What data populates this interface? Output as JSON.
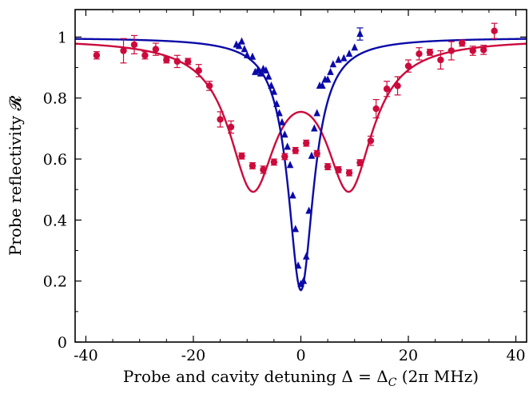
{
  "chart_data": {
    "type": "scatter",
    "title": "",
    "xlabel": "Probe and cavity detuning Δ = Δ_C (2π MHz)",
    "xlabel_parts": {
      "main": "Probe and cavity detuning Δ = Δ",
      "sub": "C",
      "tail": " (2π MHz)"
    },
    "ylabel": "Probe reflectivity 𝓡",
    "xlim": [
      -42,
      42
    ],
    "ylim": [
      0,
      1.09
    ],
    "xticks": [
      -40,
      -20,
      0,
      20,
      40
    ],
    "xtick_labels": [
      "-40",
      "-20",
      "0",
      "20",
      "40"
    ],
    "yticks": [
      0,
      0.2,
      0.4,
      0.6,
      0.8,
      1
    ],
    "ytick_labels": [
      "0",
      "0.2",
      "0.4",
      "0.6",
      "0.8",
      "1"
    ],
    "grid": false,
    "legend": "none",
    "colors": {
      "red": "#cc0a3c",
      "blue": "#0a0aa8"
    },
    "series": [
      {
        "marker": "circle",
        "color": "#cc0a3c",
        "x": [
          -38,
          -33,
          -31,
          -29,
          -27,
          -25,
          -23,
          -21,
          -19,
          -17,
          -15,
          -13,
          -11,
          -9,
          -7,
          -5,
          -3,
          -1,
          1,
          3,
          5,
          7,
          9,
          11,
          13,
          14,
          16,
          18,
          20,
          22,
          24,
          26,
          28,
          30,
          32,
          34,
          36
        ],
        "y": [
          0.94,
          0.955,
          0.975,
          0.94,
          0.96,
          0.925,
          0.92,
          0.92,
          0.89,
          0.84,
          0.73,
          0.705,
          0.61,
          0.578,
          0.565,
          0.59,
          0.608,
          0.628,
          0.652,
          0.618,
          0.575,
          0.565,
          0.555,
          0.588,
          0.66,
          0.765,
          0.83,
          0.84,
          0.905,
          0.945,
          0.95,
          0.925,
          0.955,
          0.98,
          0.955,
          0.958,
          1.02
        ],
        "err": [
          0.012,
          0.04,
          0.03,
          0.012,
          0.02,
          0.01,
          0.02,
          0.01,
          0.02,
          0.015,
          0.025,
          0.02,
          0.01,
          0.01,
          0.012,
          0.01,
          0.01,
          0.01,
          0.01,
          0.01,
          0.01,
          0.01,
          0.01,
          0.01,
          0.015,
          0.03,
          0.025,
          0.03,
          0.02,
          0.02,
          0.01,
          0.03,
          0.03,
          0.01,
          0.015,
          0.015,
          0.025
        ]
      },
      {
        "marker": "triangle",
        "color": "#0a0aa8",
        "x": [
          -12,
          -11.5,
          -11,
          -10.5,
          -10,
          -9,
          -8.5,
          -8,
          -7.5,
          -7,
          -6.5,
          -6,
          -5.5,
          -5,
          -4.5,
          -4,
          -3.5,
          -3,
          -2.5,
          -2,
          -1.5,
          -1,
          -0.5,
          0,
          0.5,
          1,
          1.5,
          2,
          2.5,
          3,
          3.5,
          4,
          4.5,
          5,
          5.5,
          6,
          7,
          8,
          9,
          10,
          11
        ],
        "y": [
          0.975,
          0.97,
          0.985,
          0.96,
          0.94,
          0.935,
          0.885,
          0.89,
          0.88,
          0.895,
          0.89,
          0.87,
          0.84,
          0.82,
          0.78,
          0.75,
          0.72,
          0.68,
          0.64,
          0.58,
          0.48,
          0.37,
          0.25,
          0.19,
          0.2,
          0.28,
          0.43,
          0.61,
          0.7,
          0.75,
          0.84,
          0.84,
          0.86,
          0.86,
          0.885,
          0.91,
          0.925,
          0.93,
          0.945,
          0.965,
          1.01
        ],
        "err": [
          0,
          0,
          0,
          0,
          0,
          0,
          0,
          0,
          0,
          0,
          0,
          0,
          0,
          0,
          0,
          0,
          0,
          0,
          0,
          0,
          0,
          0,
          0,
          0,
          0,
          0,
          0,
          0,
          0,
          0,
          0,
          0,
          0,
          0,
          0,
          0,
          0,
          0,
          0,
          0,
          0.02
        ]
      }
    ],
    "fits": [
      {
        "color": "#cc0a3c",
        "curve": "double-dip",
        "minimum": 0.53,
        "center_value": 0.62,
        "dip_positions": [
          -9,
          9
        ],
        "baseline": 0.995
      },
      {
        "color": "#0a0aa8",
        "curve": "lorentzian",
        "minimum": 0.17,
        "baseline": 0.998,
        "half_width": 2.9
      }
    ]
  }
}
